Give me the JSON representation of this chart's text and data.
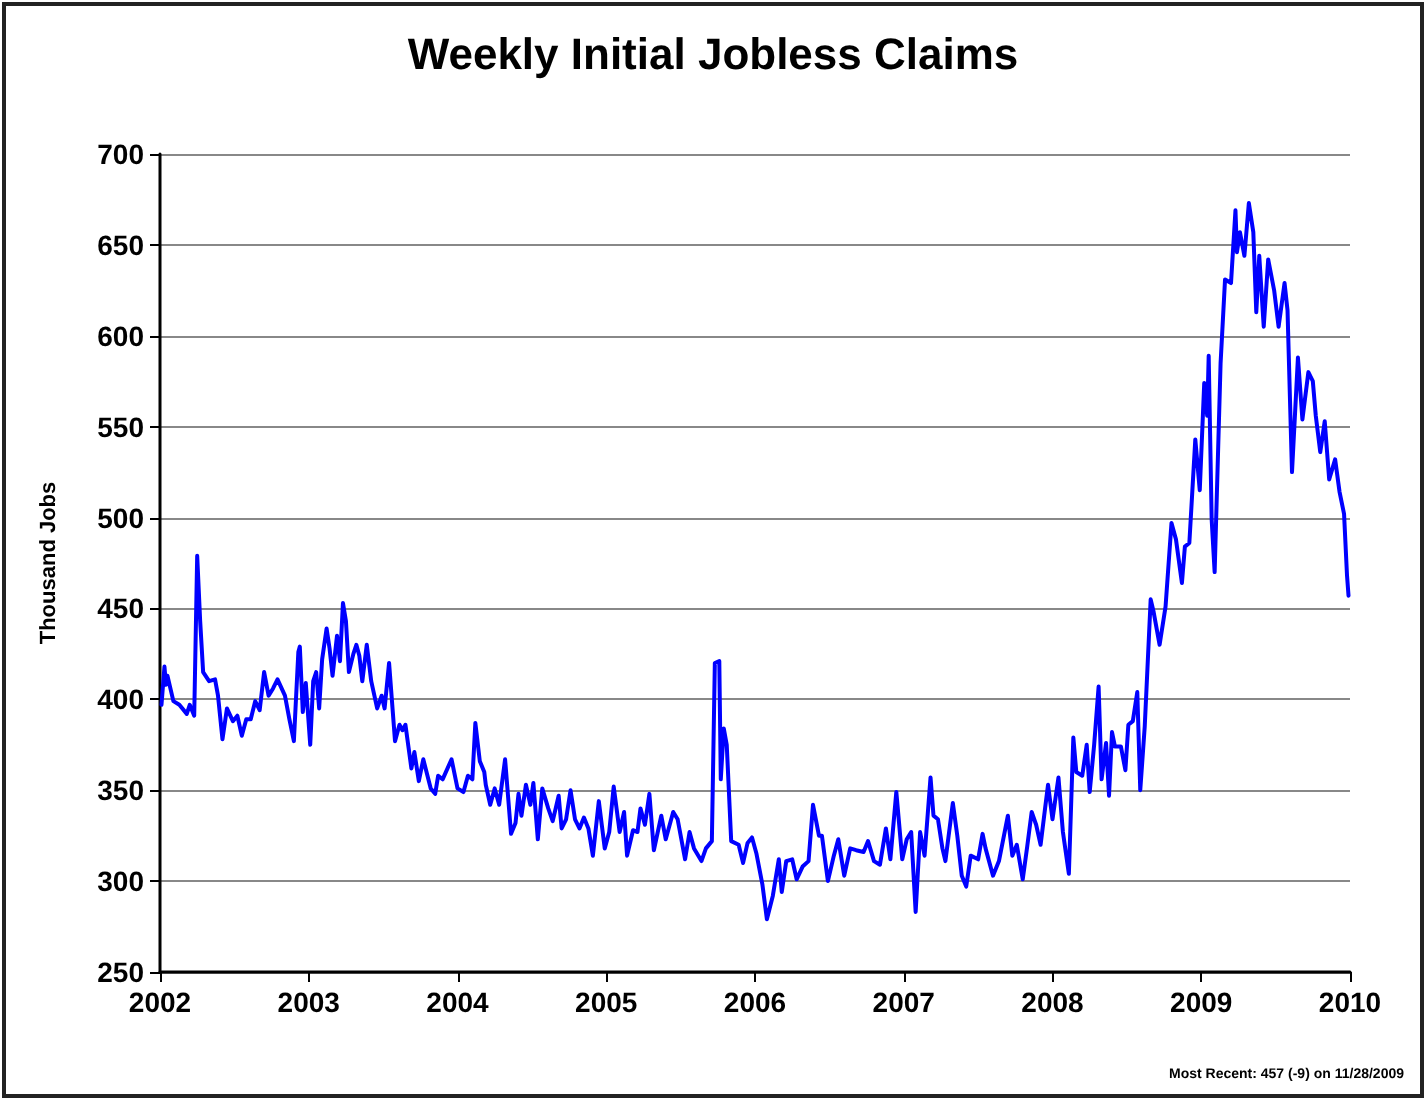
{
  "chart_data": {
    "type": "line",
    "title": "Weekly Initial Jobless Claims",
    "ylabel": "Thousand Jobs",
    "annotations": [
      "Most Recent: 457 (-9) on 11/28/2009"
    ],
    "xlim": [
      2002,
      2010
    ],
    "xticks": [
      2002,
      2003,
      2004,
      2005,
      2006,
      2007,
      2008,
      2009,
      2010
    ],
    "ylim": [
      250,
      700
    ],
    "yticks": [
      250,
      300,
      350,
      400,
      450,
      500,
      550,
      600,
      650,
      700
    ],
    "grid": "y",
    "marker": "none",
    "line_style": "solid",
    "series": [
      {
        "color": "#0000ff",
        "x": [
          2002.01,
          2002.03,
          2002.04,
          2002.05,
          2002.09,
          2002.13,
          2002.18,
          2002.2,
          2002.23,
          2002.25,
          2002.27,
          2002.29,
          2002.33,
          2002.37,
          2002.39,
          2002.42,
          2002.45,
          2002.49,
          2002.52,
          2002.55,
          2002.58,
          2002.61,
          2002.64,
          2002.67,
          2002.7,
          2002.73,
          2002.76,
          2002.79,
          2002.84,
          2002.87,
          2002.9,
          2002.93,
          2002.94,
          2002.96,
          2002.98,
          2003.01,
          2003.03,
          2003.05,
          2003.07,
          2003.09,
          2003.12,
          2003.14,
          2003.16,
          2003.19,
          2003.21,
          2003.23,
          2003.25,
          2003.27,
          2003.3,
          2003.32,
          2003.34,
          2003.36,
          2003.39,
          2003.42,
          2003.46,
          2003.49,
          2003.51,
          2003.54,
          2003.58,
          2003.61,
          2003.63,
          2003.65,
          2003.69,
          2003.71,
          2003.74,
          2003.77,
          2003.82,
          2003.85,
          2003.87,
          2003.9,
          2003.96,
          2004.0,
          2004.04,
          2004.07,
          2004.1,
          2004.12,
          2004.15,
          2004.18,
          2004.19,
          2004.22,
          2004.25,
          2004.28,
          2004.32,
          2004.36,
          2004.39,
          2004.41,
          2004.43,
          2004.46,
          2004.49,
          2004.51,
          2004.54,
          2004.57,
          2004.61,
          2004.64,
          2004.68,
          2004.7,
          2004.73,
          2004.76,
          2004.79,
          2004.82,
          2004.85,
          2004.88,
          2004.91,
          2004.95,
          2004.99,
          2005.02,
          2005.05,
          2005.09,
          2005.12,
          2005.14,
          2005.18,
          2005.21,
          2005.23,
          2005.26,
          2005.29,
          2005.32,
          2005.37,
          2005.4,
          2005.45,
          2005.48,
          2005.53,
          2005.56,
          2005.59,
          2005.64,
          2005.67,
          2005.71,
          2005.73,
          2005.76,
          2005.77,
          2005.79,
          2005.81,
          2005.84,
          2005.89,
          2005.92,
          2005.95,
          2005.98,
          2006.01,
          2006.05,
          2006.08,
          2006.12,
          2006.16,
          2006.18,
          2006.21,
          2006.25,
          2006.28,
          2006.32,
          2006.36,
          2006.39,
          2006.43,
          2006.45,
          2006.49,
          2006.53,
          2006.56,
          2006.6,
          2006.64,
          2006.68,
          2006.73,
          2006.76,
          2006.8,
          2006.84,
          2006.88,
          2006.91,
          2006.95,
          2006.99,
          2007.02,
          2007.05,
          2007.08,
          2007.11,
          2007.14,
          2007.18,
          2007.2,
          2007.23,
          2007.26,
          2007.28,
          2007.33,
          2007.36,
          2007.39,
          2007.42,
          2007.45,
          2007.5,
          2007.53,
          2007.55,
          2007.6,
          2007.64,
          2007.7,
          2007.73,
          2007.76,
          2007.8,
          2007.83,
          2007.86,
          2007.89,
          2007.92,
          2007.95,
          2007.97,
          2008.0,
          2008.04,
          2008.07,
          2008.11,
          2008.14,
          2008.16,
          2008.2,
          2008.23,
          2008.25,
          2008.28,
          2008.31,
          2008.33,
          2008.36,
          2008.38,
          2008.4,
          2008.42,
          2008.46,
          2008.49,
          2008.51,
          2008.54,
          2008.57,
          2008.59,
          2008.62,
          2008.66,
          2008.68,
          2008.72,
          2008.76,
          2008.8,
          2008.83,
          2008.87,
          2008.89,
          2008.92,
          2008.96,
          2008.99,
          2009.02,
          2009.04,
          2009.05,
          2009.07,
          2009.09,
          2009.13,
          2009.16,
          2009.2,
          2009.23,
          2009.24,
          2009.26,
          2009.29,
          2009.32,
          2009.35,
          2009.37,
          2009.39,
          2009.42,
          2009.45,
          2009.49,
          2009.52,
          2009.56,
          2009.58,
          2009.61,
          2009.65,
          2009.68,
          2009.72,
          2009.75,
          2009.77,
          2009.8,
          2009.83,
          2009.86,
          2009.9,
          2009.93,
          2009.96,
          2009.98,
          2009.99
        ],
        "values": [
          397,
          418,
          408,
          413,
          399,
          397,
          392,
          397,
          391,
          479,
          443,
          415,
          410,
          411,
          402,
          378,
          395,
          388,
          391,
          380,
          389,
          389,
          399,
          394,
          415,
          402,
          406,
          411,
          402,
          389,
          377,
          426,
          429,
          393,
          409,
          375,
          410,
          415,
          395,
          422,
          439,
          428,
          413,
          435,
          421,
          453,
          443,
          415,
          425,
          430,
          424,
          410,
          430,
          410,
          395,
          402,
          395,
          420,
          377,
          386,
          383,
          386,
          362,
          371,
          355,
          367,
          351,
          348,
          358,
          356,
          367,
          351,
          349,
          358,
          356,
          387,
          366,
          360,
          353,
          342,
          351,
          342,
          367,
          326,
          332,
          348,
          336,
          353,
          342,
          354,
          323,
          351,
          340,
          333,
          347,
          329,
          334,
          350,
          334,
          329,
          335,
          329,
          314,
          344,
          318,
          327,
          352,
          327,
          338,
          314,
          328,
          327,
          340,
          331,
          348,
          317,
          336,
          323,
          338,
          334,
          312,
          327,
          318,
          311,
          318,
          322,
          420,
          421,
          356,
          384,
          375,
          322,
          320,
          310,
          321,
          324,
          315,
          298,
          279,
          292,
          312,
          294,
          311,
          312,
          301,
          308,
          311,
          342,
          325,
          325,
          300,
          314,
          323,
          303,
          318,
          317,
          316,
          322,
          311,
          309,
          329,
          312,
          349,
          312,
          323,
          327,
          283,
          327,
          314,
          357,
          336,
          334,
          318,
          311,
          343,
          325,
          303,
          297,
          314,
          312,
          326,
          318,
          303,
          311,
          336,
          314,
          320,
          301,
          319,
          338,
          331,
          320,
          340,
          353,
          334,
          357,
          327,
          304,
          379,
          360,
          358,
          375,
          349,
          375,
          407,
          356,
          376,
          347,
          382,
          374,
          374,
          361,
          386,
          388,
          404,
          350,
          385,
          455,
          448,
          430,
          451,
          497,
          488,
          464,
          484,
          486,
          543,
          515,
          574,
          556,
          589,
          499,
          470,
          585,
          631,
          629,
          669,
          646,
          657,
          644,
          673,
          657,
          613,
          644,
          605,
          642,
          625,
          605,
          629,
          614,
          525,
          588,
          554,
          580,
          575,
          556,
          536,
          553,
          521,
          532,
          514,
          502,
          468,
          457
        ]
      }
    ]
  }
}
